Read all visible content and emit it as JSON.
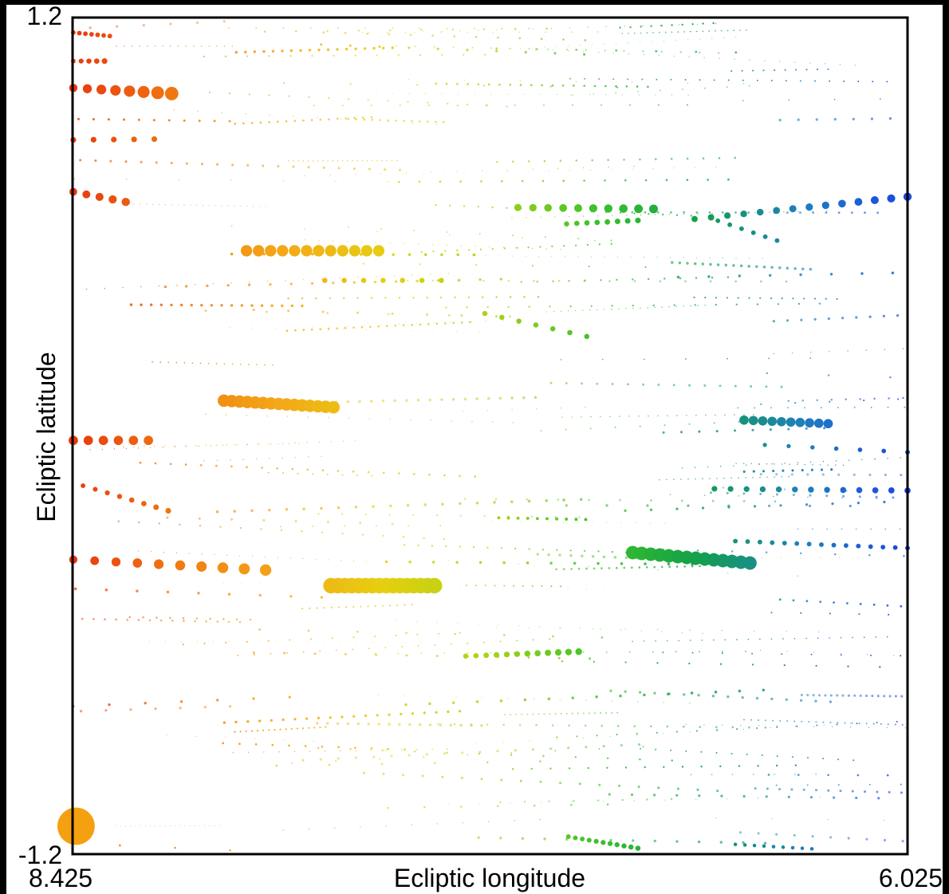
{
  "chart_data": {
    "type": "scatter",
    "title": "",
    "xlabel": "Ecliptic longitude",
    "ylabel": "Ecliptic latitude",
    "xlim": [
      8.425,
      6.025
    ],
    "ylim": [
      -1.2,
      1.2
    ],
    "x_reversed": true,
    "grid": false,
    "legend": "none",
    "tick_labels": {
      "x_left": "8.425",
      "x_right": "6.025",
      "y_top": "1.2",
      "y_bottom": "-1.2"
    },
    "color_scale": [
      "#e8380f",
      "#f07a10",
      "#f4a818",
      "#e6cf10",
      "#a8d414",
      "#3cc228",
      "#12a04a",
      "#1e7fbe",
      "#1b45e6"
    ],
    "tracks": [
      {
        "lon0": 8.423,
        "lon1": 8.318,
        "lat0": 1.157,
        "lat1": 1.147,
        "n": 7,
        "size0": 0.45,
        "size1": 0.45
      },
      {
        "lon0": 8.423,
        "lon1": 8.333,
        "lat0": 1.075,
        "lat1": 1.075,
        "n": 5,
        "size0": 0.45,
        "size1": 0.55
      },
      {
        "lon0": 8.423,
        "lon1": 8.14,
        "lat0": 0.998,
        "lat1": 0.982,
        "n": 8,
        "size0": 0.8,
        "size1": 1.3
      },
      {
        "lon0": 8.423,
        "lon1": 8.19,
        "lat0": 0.849,
        "lat1": 0.851,
        "n": 5,
        "size0": 0.55,
        "size1": 0.55
      },
      {
        "lon0": 8.423,
        "lon1": 8.272,
        "lat0": 0.7,
        "lat1": 0.671,
        "n": 5,
        "size0": 0.75,
        "size1": 0.8
      },
      {
        "lon0": 7.925,
        "lon1": 7.545,
        "lat0": 0.531,
        "lat1": 0.531,
        "n": 12,
        "size0": 1.1,
        "size1": 1.1
      },
      {
        "lon0": 7.7,
        "lon1": 7.365,
        "lat0": 0.446,
        "lat1": 0.446,
        "n": 7,
        "size0": 0.5,
        "size1": 0.5
      },
      {
        "lon0": 7.24,
        "lon1": 6.947,
        "lat0": 0.351,
        "lat1": 0.285,
        "n": 7,
        "size0": 0.5,
        "size1": 0.5
      },
      {
        "lon0": 7.145,
        "lon1": 6.755,
        "lat0": 0.655,
        "lat1": 0.651,
        "n": 10,
        "size0": 0.7,
        "size1": 0.85
      },
      {
        "lon0": 7.005,
        "lon1": 6.8,
        "lat0": 0.608,
        "lat1": 0.618,
        "n": 8,
        "size0": 0.5,
        "size1": 0.55
      },
      {
        "lon0": 6.637,
        "lon1": 6.025,
        "lat0": 0.622,
        "lat1": 0.686,
        "n": 14,
        "size0": 0.6,
        "size1": 0.8
      },
      {
        "lon0": 6.57,
        "lon1": 6.4,
        "lat0": 0.617,
        "lat1": 0.56,
        "n": 6,
        "size0": 0.45,
        "size1": 0.45
      },
      {
        "lon0": 7.99,
        "lon1": 7.675,
        "lat0": 0.101,
        "lat1": 0.082,
        "n": 15,
        "size0": 1.2,
        "size1": 1.2
      },
      {
        "lon0": 8.423,
        "lon1": 8.207,
        "lat0": -0.013,
        "lat1": -0.013,
        "n": 6,
        "size0": 0.9,
        "size1": 0.9
      },
      {
        "lon0": 8.423,
        "lon1": 7.87,
        "lat0": -0.355,
        "lat1": -0.385,
        "n": 10,
        "size0": 0.8,
        "size1": 1.1
      },
      {
        "lon0": 8.395,
        "lon1": 8.15,
        "lat0": -0.143,
        "lat1": -0.215,
        "n": 8,
        "size0": 0.45,
        "size1": 0.55
      },
      {
        "lon0": 7.682,
        "lon1": 7.385,
        "lat0": -0.43,
        "lat1": -0.43,
        "n": 16,
        "size0": 1.5,
        "size1": 1.5
      },
      {
        "lon0": 7.295,
        "lon1": 6.97,
        "lat0": -0.632,
        "lat1": -0.619,
        "n": 12,
        "size0": 0.5,
        "size1": 0.65
      },
      {
        "lon0": 6.815,
        "lon1": 6.478,
        "lat0": -0.335,
        "lat1": -0.365,
        "n": 14,
        "size0": 1.3,
        "size1": 1.3
      },
      {
        "lon0": 6.495,
        "lon1": 6.253,
        "lat0": 0.045,
        "lat1": 0.035,
        "n": 10,
        "size0": 0.9,
        "size1": 0.9
      },
      {
        "lon0": 6.58,
        "lon1": 6.025,
        "lat0": -0.152,
        "lat1": -0.157,
        "n": 13,
        "size0": 0.55,
        "size1": 0.6
      },
      {
        "lon0": 6.435,
        "lon1": 6.025,
        "lat0": -0.026,
        "lat1": -0.047,
        "n": 7,
        "size0": 0.4,
        "size1": 0.45
      },
      {
        "lon0": 7.0,
        "lon1": 6.8,
        "lat0": -1.15,
        "lat1": -1.183,
        "n": 11,
        "size0": 0.45,
        "size1": 0.5
      },
      {
        "lon0": 6.52,
        "lon1": 6.3,
        "lat0": -1.172,
        "lat1": -1.185,
        "n": 9,
        "size0": 0.35,
        "size1": 0.35
      },
      {
        "lon0": 6.52,
        "lon1": 6.025,
        "lat0": -0.302,
        "lat1": -0.322,
        "n": 15,
        "size0": 0.45,
        "size1": 0.45
      },
      {
        "lon0": 7.2,
        "lon1": 6.95,
        "lat0": -0.235,
        "lat1": -0.24,
        "n": 10,
        "size0": 0.3,
        "size1": 0.3
      }
    ],
    "highlight": {
      "lon": 8.415,
      "lat": -1.12,
      "size": 3.6,
      "color": "#f5a010"
    }
  }
}
